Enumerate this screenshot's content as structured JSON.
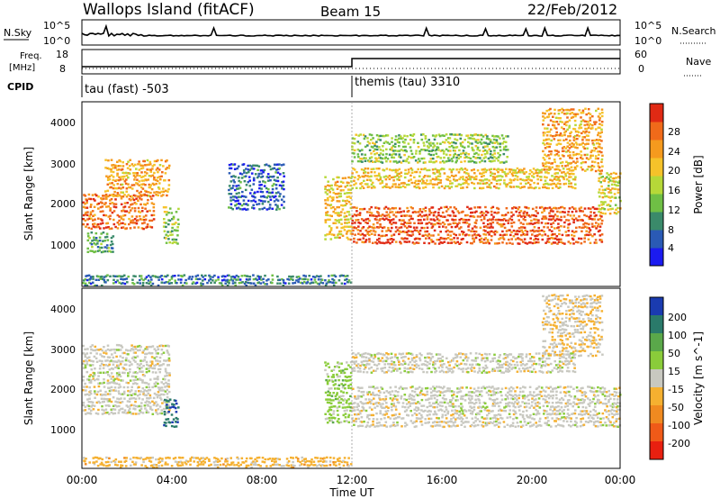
{
  "header": {
    "site": "Wallops Island (fitACF)",
    "beam": "Beam 15",
    "date": "22/Feb/2012"
  },
  "noise_panel": {
    "left_label": "N.Sky",
    "right_label": "N.Search",
    "left_ticks": [
      "10^5",
      "10^0"
    ],
    "right_ticks": [
      "10^5",
      "10^0"
    ]
  },
  "freq_panel": {
    "left_label_line1": "Freq.",
    "left_label_line2": "[MHz]",
    "right_label": "Nave",
    "left_ticks": [
      "18",
      "8"
    ],
    "right_ticks": [
      "60",
      "0"
    ]
  },
  "cpid": {
    "label": "CPID",
    "segments": [
      {
        "name": "tau (fast) -503",
        "start_hour": 0
      },
      {
        "name": "themis (tau) 3310",
        "start_hour": 12
      }
    ]
  },
  "x_axis": {
    "label": "Time UT",
    "ticks": [
      "00:00",
      "04:00",
      "08:00",
      "12:00",
      "16:00",
      "20:00",
      "00:00"
    ]
  },
  "power_panel": {
    "ylabel": "Slant Range [km]",
    "yticks": [
      "1000",
      "2000",
      "3000",
      "4000"
    ],
    "colorbar_label": "Power [dB]",
    "colorbar_ticks": [
      "4",
      "8",
      "12",
      "16",
      "20",
      "24",
      "28"
    ],
    "colors": [
      "#1b1bf0",
      "#2a5ab5",
      "#3a8a6a",
      "#6fbf45",
      "#b6d838",
      "#f5c22a",
      "#f59a1e",
      "#f06a1a",
      "#e02a14"
    ]
  },
  "velocity_panel": {
    "ylabel": "Slant Range [km]",
    "yticks": [
      "1000",
      "2000",
      "3000",
      "4000"
    ],
    "colorbar_label": "Velocity [m s^-1]",
    "colorbar_ticks": [
      "200",
      "100",
      "50",
      "15",
      "-15",
      "-50",
      "-100",
      "-200"
    ],
    "colors": [
      "#1a3bb0",
      "#2a7a6a",
      "#5aa84a",
      "#8acc3a",
      "#c8c8c0",
      "#f5b030",
      "#f08a20",
      "#f05a18",
      "#e82010"
    ]
  },
  "chart_data": {
    "type": "heatmap",
    "x_range_hours": [
      0,
      24
    ],
    "y_range_km": [
      180,
      4500
    ],
    "series": [
      {
        "name": "Power [dB]",
        "clim": [
          0,
          32
        ]
      },
      {
        "name": "Velocity [m s^-1]",
        "clim": [
          -200,
          200
        ]
      }
    ],
    "power_bands": [
      {
        "t0": 0.0,
        "t1": 3.2,
        "r0": 1550,
        "r1": 2400,
        "power": 26
      },
      {
        "t0": 1.0,
        "t1": 3.9,
        "r0": 2300,
        "r1": 3200,
        "power": 22
      },
      {
        "t0": 3.6,
        "t1": 4.3,
        "r0": 1200,
        "r1": 2100,
        "power": 14
      },
      {
        "t0": 0.2,
        "t1": 1.4,
        "r0": 1000,
        "r1": 1500,
        "power": 10
      },
      {
        "t0": 6.5,
        "t1": 9.0,
        "r0": 2000,
        "r1": 3100,
        "power": 6
      },
      {
        "t0": 10.8,
        "t1": 12.0,
        "r0": 1300,
        "r1": 2800,
        "power": 20
      },
      {
        "t0": 12.0,
        "t1": 23.2,
        "r0": 1200,
        "r1": 2100,
        "power": 28
      },
      {
        "t0": 12.0,
        "t1": 22.0,
        "r0": 2500,
        "r1": 3000,
        "power": 20
      },
      {
        "t0": 12.0,
        "t1": 19.0,
        "r0": 3100,
        "r1": 3800,
        "power": 14
      },
      {
        "t0": 20.5,
        "t1": 23.2,
        "r0": 2900,
        "r1": 4400,
        "power": 22
      },
      {
        "t0": 23.0,
        "t1": 24.0,
        "r0": 1900,
        "r1": 2900,
        "power": 18
      },
      {
        "t0": 0.0,
        "t1": 12.0,
        "r0": 180,
        "r1": 500,
        "power": 8
      }
    ],
    "velocity_bands": [
      {
        "t0": 0.0,
        "t1": 3.9,
        "r0": 1500,
        "r1": 3200,
        "velocity": 0
      },
      {
        "t0": 3.6,
        "t1": 4.3,
        "r0": 1200,
        "r1": 1900,
        "velocity": 150
      },
      {
        "t0": 10.8,
        "t1": 12.0,
        "r0": 1300,
        "r1": 2800,
        "velocity": 40
      },
      {
        "t0": 12.0,
        "t1": 24.0,
        "r0": 1200,
        "r1": 2200,
        "velocity": 0
      },
      {
        "t0": 12.0,
        "t1": 22.0,
        "r0": 2500,
        "r1": 3000,
        "velocity": 0
      },
      {
        "t0": 20.5,
        "t1": 23.2,
        "r0": 2900,
        "r1": 4400,
        "velocity": -20
      },
      {
        "t0": 0.0,
        "t1": 12.0,
        "r0": 180,
        "r1": 500,
        "velocity": -40
      }
    ],
    "cpid_change_hour": 12
  }
}
